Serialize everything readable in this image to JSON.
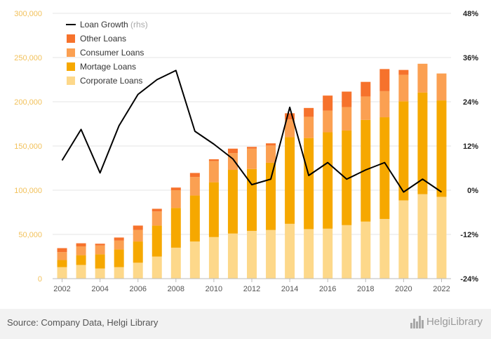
{
  "chart_data": {
    "type": "bar",
    "stacked": true,
    "categories": [
      "2002",
      "2003",
      "2004",
      "2005",
      "2006",
      "2007",
      "2008",
      "2009",
      "2010",
      "2011",
      "2012",
      "2013",
      "2014",
      "2015",
      "2016",
      "2017",
      "2018",
      "2019",
      "2020",
      "2021",
      "2022"
    ],
    "x_tick_labels": [
      "2002",
      "2004",
      "2006",
      "2008",
      "2010",
      "2012",
      "2014",
      "2016",
      "2018",
      "2020",
      "2022"
    ],
    "series": [
      {
        "name": "Corporate Loans",
        "color": "#fdd88a",
        "values": [
          13000,
          15500,
          11500,
          13000,
          18000,
          25000,
          35000,
          42000,
          47000,
          51000,
          54000,
          55000,
          62000,
          56000,
          56500,
          60500,
          64500,
          67500,
          88500,
          95500,
          92500
        ]
      },
      {
        "name": "Mortage Loans",
        "color": "#f6a800",
        "values": [
          8000,
          11000,
          16000,
          20000,
          24000,
          35000,
          45000,
          52000,
          62000,
          72000,
          70000,
          76000,
          98000,
          103000,
          109000,
          107000,
          115000,
          115000,
          112000,
          115000,
          109000
        ]
      },
      {
        "name": "Consumer Loans",
        "color": "#fba052",
        "values": [
          9000,
          10000,
          10000,
          10000,
          13000,
          16000,
          20000,
          21000,
          24000,
          19000,
          23000,
          19500,
          20000,
          24000,
          24500,
          26500,
          26500,
          29500,
          30000,
          32500,
          30500
        ]
      },
      {
        "name": "Other Loans",
        "color": "#f6722c",
        "values": [
          4500,
          3500,
          2000,
          3500,
          5000,
          3000,
          3000,
          4500,
          2000,
          5000,
          2000,
          2500,
          7000,
          10000,
          17000,
          17500,
          16500,
          25000,
          5500,
          0,
          0
        ]
      }
    ],
    "line_series": {
      "name": "Loan Growth",
      "axis": "rhs",
      "unit": "%",
      "color": "#000000",
      "values": [
        8.1,
        16.5,
        4.7,
        17.5,
        26.0,
        30.0,
        32.5,
        16.0,
        12.5,
        8.5,
        1.5,
        3.0,
        22.5,
        4.0,
        7.5,
        3.0,
        5.5,
        7.5,
        -0.5,
        3.0,
        -0.5
      ]
    },
    "y_left": {
      "min": 0,
      "max": 300000,
      "ticks": [
        "0",
        "50,000",
        "100,000",
        "150,000",
        "200,000",
        "250,000",
        "300,000"
      ]
    },
    "y_right": {
      "min": -24,
      "max": 48,
      "ticks": [
        "-24%",
        "-12%",
        "0%",
        "12%",
        "24%",
        "36%",
        "48%"
      ]
    },
    "legend": {
      "placement": "top-left",
      "items": [
        {
          "label": "Loan Growth",
          "suffix": "(rhs)",
          "kind": "line",
          "color": "#000000"
        },
        {
          "label": "Other Loans",
          "kind": "box",
          "color": "#f6722c"
        },
        {
          "label": "Consumer Loans",
          "kind": "box",
          "color": "#fba052"
        },
        {
          "label": "Mortage Loans",
          "kind": "box",
          "color": "#f6a800"
        },
        {
          "label": "Corporate Loans",
          "kind": "box",
          "color": "#fdd88a"
        }
      ]
    },
    "grid": true
  },
  "footer": {
    "source": "Source: Company Data, Helgi Library",
    "brand": "HelgiLibrary"
  }
}
